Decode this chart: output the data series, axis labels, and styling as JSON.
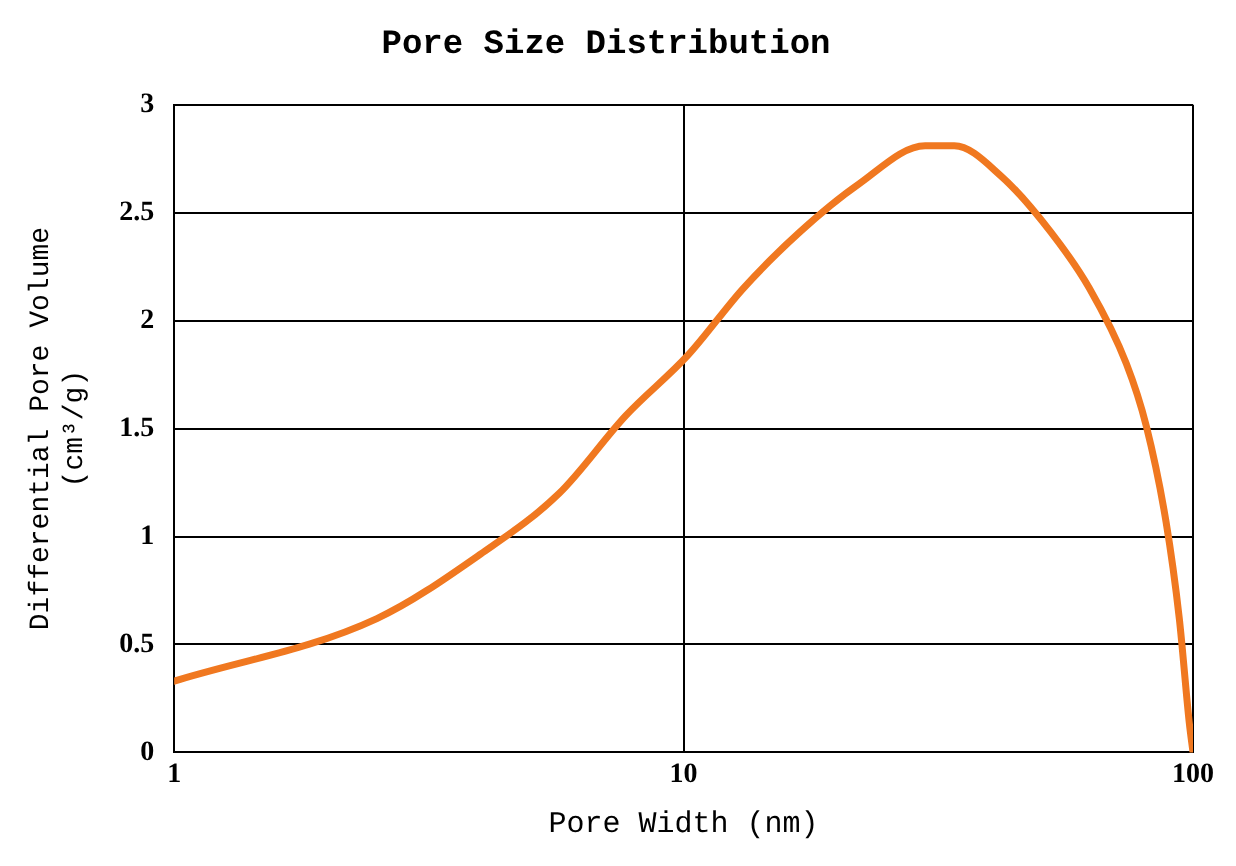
{
  "chart_data": {
    "type": "line",
    "title": "Pore Size Distribution",
    "xlabel": "Pore Width (nm)",
    "ylabel": "Differential Pore Volume\n(cm³/g)",
    "log": "x",
    "grid": true,
    "marker": "none",
    "line_style": "solid",
    "xlim": [
      1,
      100
    ],
    "xticks": [
      1,
      10,
      100
    ],
    "ylim": [
      0,
      3
    ],
    "yticks": [
      0,
      0.5,
      1,
      1.5,
      2,
      2.5,
      3
    ],
    "series": [
      {
        "color": "#f07820",
        "x": [
          1,
          2.5,
          4,
          5.7,
          7.7,
          10.2,
          13.1,
          16.9,
          22,
          29.8,
          34,
          42,
          52.6,
          62.6,
          74,
          81,
          88.5,
          94,
          98.3,
          100
        ],
        "values": [
          0.33,
          0.62,
          0.92,
          1.2,
          1.56,
          1.84,
          2.15,
          2.41,
          2.63,
          2.81,
          2.81,
          2.67,
          2.41,
          2.15,
          1.8,
          1.51,
          1.07,
          0.62,
          0.14,
          0
        ]
      }
    ]
  }
}
